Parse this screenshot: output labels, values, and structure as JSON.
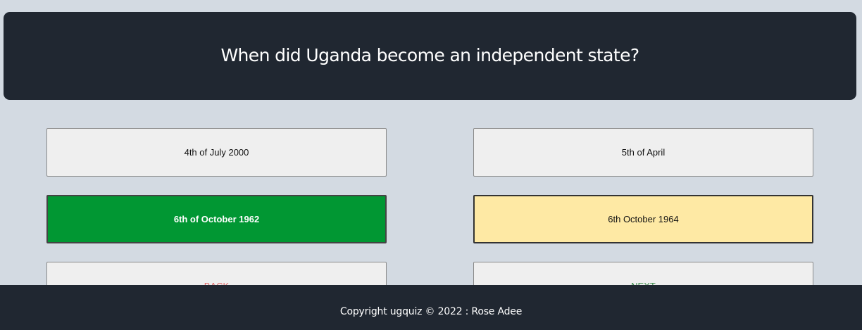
{
  "question": {
    "text": "When did Uganda become an independent state?"
  },
  "answers": [
    {
      "label": "4th of July 2000",
      "state": "default"
    },
    {
      "label": "5th of April",
      "state": "default"
    },
    {
      "label": "6th of October 1962",
      "state": "correct"
    },
    {
      "label": "6th October 1964",
      "state": "selected"
    }
  ],
  "navigation": {
    "back_label": "BACK",
    "next_label": "NEXT"
  },
  "footer": {
    "copyright": "Copyright ugquiz © 2022 : Rose Adee"
  },
  "colors": {
    "page_background": "#d3dae2",
    "card_background": "#202731",
    "correct": "#019733",
    "selected": "#fee9a4",
    "back_text": "#e06a6a",
    "next_text": "#3c8c4c"
  }
}
